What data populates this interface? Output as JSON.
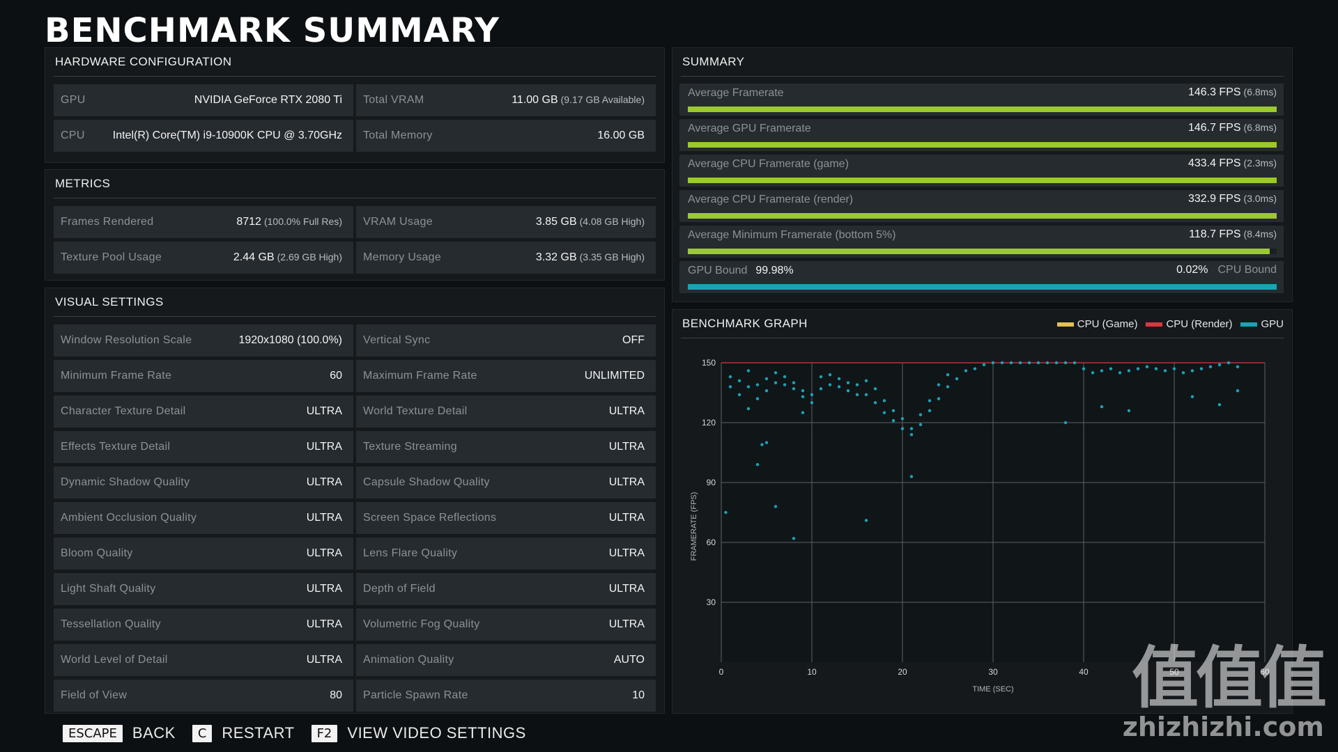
{
  "page_title": "BENCHMARK SUMMARY",
  "hardware": {
    "title": "HARDWARE CONFIGURATION",
    "rows": [
      {
        "label": "GPU",
        "value": "NVIDIA GeForce RTX 2080 Ti",
        "sub": ""
      },
      {
        "label": "Total VRAM",
        "value": "11.00 GB",
        "sub": "(9.17 GB Available)"
      },
      {
        "label": "CPU",
        "value": "Intel(R) Core(TM) i9-10900K CPU @ 3.70GHz",
        "sub": ""
      },
      {
        "label": "Total Memory",
        "value": "16.00 GB",
        "sub": ""
      }
    ]
  },
  "metrics": {
    "title": "METRICS",
    "rows": [
      {
        "label": "Frames Rendered",
        "value": "8712",
        "sub": "(100.0% Full Res)"
      },
      {
        "label": "VRAM Usage",
        "value": "3.85 GB",
        "sub": "(4.08 GB High)"
      },
      {
        "label": "Texture Pool Usage",
        "value": "2.44 GB",
        "sub": "(2.69 GB High)"
      },
      {
        "label": "Memory Usage",
        "value": "3.32 GB",
        "sub": "(3.35 GB High)"
      }
    ]
  },
  "visual": {
    "title": "VISUAL SETTINGS",
    "rows": [
      {
        "label": "Window Resolution Scale",
        "value": "1920x1080 (100.0%)"
      },
      {
        "label": "Vertical Sync",
        "value": "OFF"
      },
      {
        "label": "Minimum Frame Rate",
        "value": "60"
      },
      {
        "label": "Maximum Frame Rate",
        "value": "UNLIMITED"
      },
      {
        "label": "Character Texture Detail",
        "value": "ULTRA"
      },
      {
        "label": "World Texture Detail",
        "value": "ULTRA"
      },
      {
        "label": "Effects Texture Detail",
        "value": "ULTRA"
      },
      {
        "label": "Texture Streaming",
        "value": "ULTRA"
      },
      {
        "label": "Dynamic Shadow Quality",
        "value": "ULTRA"
      },
      {
        "label": "Capsule Shadow Quality",
        "value": "ULTRA"
      },
      {
        "label": "Ambient Occlusion Quality",
        "value": "ULTRA"
      },
      {
        "label": "Screen Space Reflections",
        "value": "ULTRA"
      },
      {
        "label": "Bloom Quality",
        "value": "ULTRA"
      },
      {
        "label": "Lens Flare Quality",
        "value": "ULTRA"
      },
      {
        "label": "Light Shaft Quality",
        "value": "ULTRA"
      },
      {
        "label": "Depth of Field",
        "value": "ULTRA"
      },
      {
        "label": "Tessellation Quality",
        "value": "ULTRA"
      },
      {
        "label": "Volumetric Fog Quality",
        "value": "ULTRA"
      },
      {
        "label": "World Level of Detail",
        "value": "ULTRA"
      },
      {
        "label": "Animation Quality",
        "value": "AUTO"
      },
      {
        "label": "Field of View",
        "value": "80"
      },
      {
        "label": "Particle Spawn Rate",
        "value": "10"
      }
    ]
  },
  "summary": {
    "title": "SUMMARY",
    "rows": [
      {
        "label": "Average Framerate",
        "value": "146.3 FPS",
        "sub": "(6.8ms)",
        "fill": 1.0
      },
      {
        "label": "Average GPU Framerate",
        "value": "146.7 FPS",
        "sub": "(6.8ms)",
        "fill": 1.0
      },
      {
        "label": "Average CPU Framerate (game)",
        "value": "433.4 FPS",
        "sub": "(2.3ms)",
        "fill": 1.0
      },
      {
        "label": "Average CPU Framerate (render)",
        "value": "332.9 FPS",
        "sub": "(3.0ms)",
        "fill": 1.0
      },
      {
        "label": "Average Minimum Framerate (bottom 5%)",
        "value": "118.7 FPS",
        "sub": "(8.4ms)",
        "fill": 0.988
      }
    ],
    "bound": {
      "gpu_label": "GPU Bound",
      "gpu_value": "99.98%",
      "cpu_value": "0.02%",
      "cpu_label": "CPU Bound",
      "gpu_fraction": 0.9998
    },
    "colors": {
      "bar": "#9cc92e",
      "bound": "#1ba3b5"
    }
  },
  "chart_data": {
    "type": "scatter",
    "title": "BENCHMARK GRAPH",
    "xlabel": "TIME (SEC)",
    "ylabel": "FRAMERATE (FPS)",
    "xlim": [
      0,
      60
    ],
    "ylim": [
      0,
      150
    ],
    "xticks": [
      "0",
      "10",
      "20",
      "30",
      "40",
      "50",
      "60"
    ],
    "yticks": [
      "30",
      "60",
      "90",
      "120",
      "150"
    ],
    "grid": true,
    "legend_position": "top-right",
    "legend": [
      {
        "name": "CPU (Game)",
        "color": "#e5c14f"
      },
      {
        "name": "CPU (Render)",
        "color": "#d9383f"
      },
      {
        "name": "GPU",
        "color": "#1ba3b5"
      }
    ],
    "cpu_render_line": 150,
    "series": [
      {
        "name": "GPU",
        "color": "#1ba3b5",
        "x": [
          1,
          2,
          3,
          4,
          5,
          6,
          7,
          8,
          9,
          10,
          11,
          12,
          13,
          14,
          15,
          16,
          17,
          18,
          19,
          20,
          21,
          22,
          23,
          24,
          25,
          26,
          27,
          28,
          29,
          30,
          31,
          32,
          33,
          34,
          35,
          36,
          37,
          38,
          39,
          40,
          41,
          42,
          43,
          44,
          45,
          46,
          47,
          48,
          49,
          50,
          51,
          52,
          53,
          54,
          55,
          56,
          57
        ],
        "y": [
          143,
          141,
          146,
          139,
          142,
          145,
          143,
          140,
          136,
          134,
          143,
          144,
          142,
          140,
          139,
          141,
          137,
          131,
          126,
          122,
          117,
          124,
          131,
          139,
          144,
          142,
          146,
          147,
          149,
          150,
          150,
          150,
          150,
          150,
          150,
          150,
          150,
          150,
          150,
          147,
          145,
          146,
          147,
          145,
          146,
          147,
          148,
          147,
          146,
          147,
          145,
          146,
          147,
          148,
          149,
          150,
          148
        ]
      },
      {
        "name": "GPU (lower band)",
        "color": "#1ba3b5",
        "x": [
          1,
          2,
          3,
          4,
          5,
          6,
          7,
          8,
          9,
          10,
          11,
          12,
          13,
          14,
          15,
          16,
          17,
          18,
          19,
          20,
          21,
          22,
          23,
          24,
          25
        ],
        "y": [
          138,
          134,
          138,
          132,
          136,
          140,
          139,
          137,
          133,
          130,
          137,
          139,
          138,
          136,
          134,
          134,
          130,
          125,
          121,
          117,
          114,
          119,
          126,
          132,
          138
        ]
      },
      {
        "name": "GPU (outliers)",
        "color": "#1ba3b5",
        "x": [
          3,
          5,
          9,
          21,
          38,
          42,
          45,
          52,
          55,
          57,
          0.5,
          4,
          6,
          8,
          4.5,
          16
        ],
        "y": [
          127,
          110,
          125,
          93,
          120,
          128,
          126,
          133,
          129,
          136,
          75,
          99,
          78,
          62,
          109,
          71
        ]
      }
    ]
  },
  "footer": [
    {
      "key": "ESCAPE",
      "action": "BACK"
    },
    {
      "key": "C",
      "action": "RESTART"
    },
    {
      "key": "F2",
      "action": "VIEW VIDEO SETTINGS"
    }
  ],
  "watermark": {
    "main": "值值值",
    "domain": "zhizhizhi.com"
  }
}
